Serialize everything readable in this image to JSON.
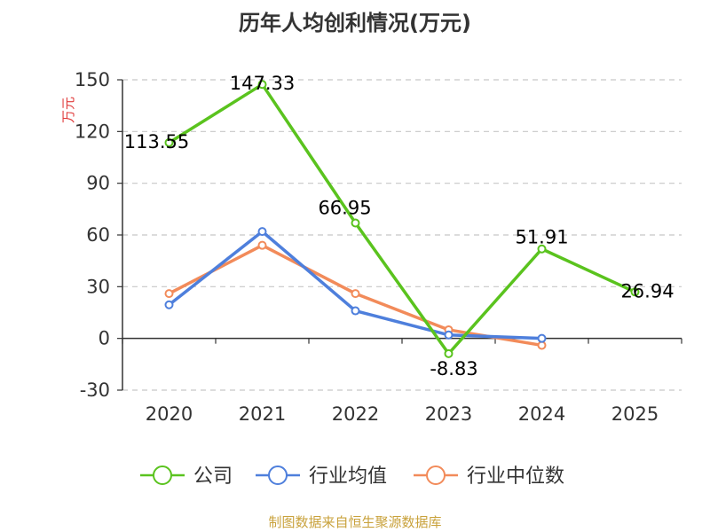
{
  "source_text": "制图数据来自恒生聚源数据库",
  "chart_data": {
    "type": "line",
    "title": "历年人均创利情况(万元)",
    "ylabel": "万元",
    "xlabel": "",
    "categories": [
      "2020",
      "2021",
      "2022",
      "2023",
      "2024",
      "2025"
    ],
    "ylim": [
      -30,
      150
    ],
    "yticks": [
      -30,
      0,
      30,
      60,
      90,
      120,
      150
    ],
    "grid": true,
    "legend_position": "bottom",
    "series": [
      {
        "name": "公司",
        "color": "#5ac31e",
        "values": [
          113.55,
          147.33,
          66.95,
          -8.83,
          51.91,
          26.94
        ],
        "labels": [
          "113.55",
          "147.33",
          "66.95",
          "-8.83",
          "51.91",
          "26.94"
        ]
      },
      {
        "name": "行业均值",
        "color": "#4e7fdc",
        "values": [
          19.5,
          62,
          16,
          2,
          0,
          null
        ]
      },
      {
        "name": "行业中位数",
        "color": "#f28b5a",
        "values": [
          26,
          54,
          26,
          5,
          -4,
          null
        ]
      }
    ],
    "colors": {
      "text": "#333333",
      "ylabel": "#e03c3c",
      "grid": "#c8c8c8",
      "source": "#c9a23c"
    }
  }
}
